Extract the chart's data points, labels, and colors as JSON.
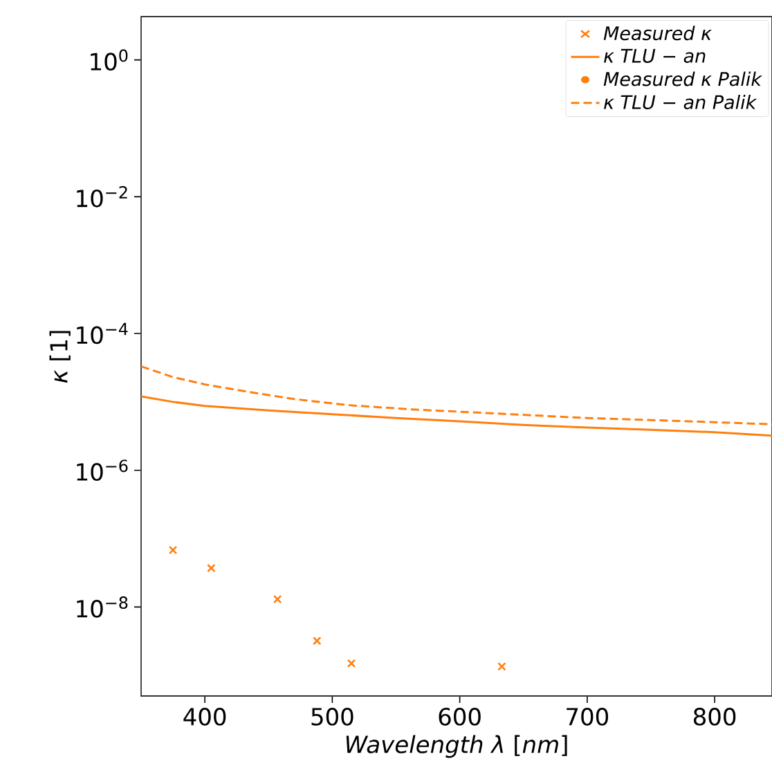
{
  "chart_data": {
    "type": "line",
    "xlabel": "*Wavelength λ* [*nm*]",
    "ylabel": "*κ* [1]",
    "log": "y",
    "xlim": [
      350,
      845
    ],
    "ylim": [
      5e-10,
      4.3
    ],
    "xticks": [
      400,
      500,
      600,
      700,
      800
    ],
    "yticks": [
      {
        "value": 1,
        "label": "10$^{0}$"
      },
      {
        "value": 0.01,
        "label": "10$^{−2}$"
      },
      {
        "value": 0.0001,
        "label": "10$^{−4}$"
      },
      {
        "value": 1e-06,
        "label": "10$^{−6}$"
      },
      {
        "value": 1e-08,
        "label": "10$^{−8}$"
      }
    ],
    "legend": "top right",
    "grid": false,
    "series": [
      {
        "name": "Measured κ",
        "type": "scatter",
        "marker": "cross",
        "color": "#ff7f0e",
        "x": [
          375,
          405,
          457,
          488,
          515,
          633
        ],
        "values": [
          6.8e-08,
          3.7e-08,
          1.3e-08,
          3.2e-09,
          1.5e-09,
          1.35e-09
        ]
      },
      {
        "name": "κ TLU − an",
        "line_style": "solid",
        "color": "#ff7f0e",
        "x": [
          350,
          375,
          400,
          450,
          500,
          550,
          600,
          650,
          700,
          750,
          800,
          845
        ],
        "values": [
          1.2e-05,
          1e-05,
          8.7e-06,
          7.5e-06,
          6.6e-06,
          5.8e-06,
          5.2e-06,
          4.6e-06,
          4.2e-06,
          3.9e-06,
          3.6e-06,
          3.2e-06
        ]
      },
      {
        "name": "Measured κ Palik",
        "type": "scatter",
        "marker": "circle",
        "color": "#ff7f0e"
      },
      {
        "name": "κ TLU − an Palik",
        "line_style": "dashed",
        "color": "#ff7f0e",
        "x": [
          350,
          375,
          400,
          434,
          470,
          511,
          560,
          626,
          700,
          780,
          845
        ],
        "values": [
          3.3e-05,
          2.3e-05,
          1.8e-05,
          1.4e-05,
          1.1e-05,
          9e-06,
          7.8e-06,
          6.8e-06,
          5.8e-06,
          5.2e-06,
          4.7e-06
        ]
      }
    ]
  }
}
